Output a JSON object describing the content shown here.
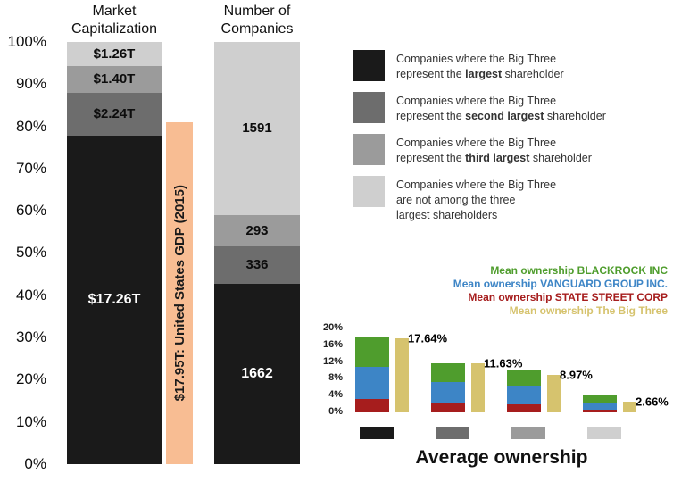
{
  "colors": {
    "rank1": "#1a1a1a",
    "rank2": "#6d6d6d",
    "rank3": "#9b9b9b",
    "rank4": "#cfcfcf",
    "gdp_bar": "#f8bd93",
    "blackrock": "#4f9d2d",
    "vanguard": "#3d85c6",
    "state_street": "#a61d1d",
    "big_three": "#d6c36e"
  },
  "chart_data": [
    {
      "type": "bar",
      "subtype": "100pct-stacked-columns",
      "y_axis": {
        "min": 0,
        "max": 100,
        "ticks": [
          "100%",
          "90%",
          "80%",
          "70%",
          "60%",
          "50%",
          "40%",
          "30%",
          "20%",
          "10%",
          "0%"
        ]
      },
      "columns": [
        {
          "title": "Market Capitalization",
          "segments": [
            {
              "label": "$1.26T",
              "pct": 5.7,
              "category": "not-among-top-3"
            },
            {
              "label": "$1.40T",
              "pct": 6.3,
              "category": "third-largest"
            },
            {
              "label": "$2.24T",
              "pct": 10.1,
              "category": "second-largest"
            },
            {
              "label": "$17.26T",
              "pct": 77.9,
              "category": "largest"
            }
          ]
        },
        {
          "title": "Number of Companies",
          "segments": [
            {
              "label": "1591",
              "pct": 41.0,
              "category": "not-among-top-3"
            },
            {
              "label": "293",
              "pct": 7.5,
              "category": "third-largest"
            },
            {
              "label": "336",
              "pct": 8.7,
              "category": "second-largest"
            },
            {
              "label": "1662",
              "pct": 42.8,
              "category": "largest"
            }
          ]
        }
      ],
      "reference_bar": {
        "label": "$17.95T: United States GDP (2015)",
        "pct": 81.0
      }
    },
    {
      "type": "bar",
      "title": "Average ownership",
      "y_axis": {
        "min": 0,
        "max": 20,
        "ticks": [
          "20%",
          "16%",
          "12%",
          "8%",
          "4%",
          "0%"
        ]
      },
      "legend": [
        {
          "label": "Mean ownership BLACKROCK INC"
        },
        {
          "label": "Mean ownership VANGUARD GROUP INC."
        },
        {
          "label": "Mean ownership STATE STREET CORP"
        },
        {
          "label": "Mean ownership The Big Three"
        }
      ],
      "groups": [
        {
          "category": "largest",
          "state_street": 3.2,
          "vanguard": 7.6,
          "blackrock": 7.2,
          "big_three": 17.64,
          "big_three_label": "17.64%"
        },
        {
          "category": "second-largest",
          "state_street": 2.2,
          "vanguard": 5.0,
          "blackrock": 4.6,
          "big_three": 11.63,
          "big_three_label": "11.63%"
        },
        {
          "category": "third-largest",
          "state_street": 2.0,
          "vanguard": 4.3,
          "blackrock": 3.9,
          "big_three": 8.97,
          "big_three_label": "8.97%"
        },
        {
          "category": "not-among-top-3",
          "state_street": 0.6,
          "vanguard": 1.6,
          "blackrock": 2.0,
          "big_three": 2.66,
          "big_three_label": "2.66%"
        }
      ]
    }
  ],
  "legend": {
    "items": [
      {
        "pre": "Companies where the Big Three\nrepresent the ",
        "bold": "largest",
        "post": " shareholder"
      },
      {
        "pre": "Companies where the Big Three\nrepresent the ",
        "bold": "second largest",
        "post": " shareholder"
      },
      {
        "pre": "Companies where the Big Three\nrepresent the ",
        "bold": "third largest",
        "post": " shareholder"
      },
      {
        "pre": "Companies where the Big Three\nare not among the three\nlargest shareholders",
        "bold": "",
        "post": ""
      }
    ]
  }
}
